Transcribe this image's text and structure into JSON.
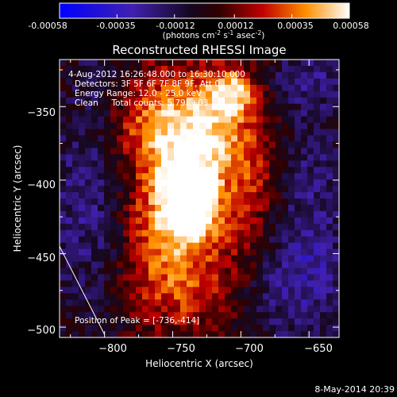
{
  "colorbar": {
    "ticks": [
      "-0.00058",
      "-0.00035",
      "-0.00012",
      "0.00012",
      "0.00035",
      "0.00058"
    ],
    "range": [
      -0.00058,
      0.00058
    ],
    "unit_text": "(photons cm",
    "unit_sup1": "-2",
    "unit_s": " s",
    "unit_sup2": "-1",
    "unit_asec": " asec",
    "unit_sup3": "-2",
    "unit_close": ")"
  },
  "chart_data": {
    "type": "heatmap",
    "title": "Reconstructed RHESSI Image",
    "xlabel": "Heliocentric X (arcsec)",
    "ylabel": "Heliocentric Y (arcsec)",
    "xlim": [
      -833,
      -628
    ],
    "ylim": [
      -507,
      -318
    ],
    "x_ticks": [
      -800,
      -750,
      -700,
      -650
    ],
    "x_tick_labels": [
      "−800",
      "−750",
      "−700",
      "−650"
    ],
    "y_ticks": [
      -350,
      -400,
      -450,
      -500
    ],
    "y_tick_labels": [
      "−350",
      "−400",
      "−450",
      "−500"
    ],
    "annotations": [
      "4-Aug-2012 16:26:48.000 to 16:30:10.000",
      "Detectors: 3F 5F 6F 7F 8F 9F, Att 0",
      "Energy Range: 12.0 - 25.0 keV",
      "Clean     Total counts: 5.79E+03"
    ],
    "peak_label": "Position of Peak = [-736,-414]",
    "peak": {
      "x": -736,
      "y": -414
    },
    "limb_line": [
      [
        -833,
        -445
      ],
      [
        -800,
        -505
      ]
    ],
    "blob_model": [
      {
        "x": -736,
        "y": -414,
        "sx": 12,
        "sy": 16,
        "amp": 0.00058
      },
      {
        "x": -745,
        "y": -395,
        "sx": 22,
        "sy": 40,
        "amp": 0.0004
      },
      {
        "x": -720,
        "y": -360,
        "sx": 20,
        "sy": 25,
        "amp": 0.00034
      },
      {
        "x": -705,
        "y": -340,
        "sx": 12,
        "sy": 10,
        "amp": 0.00038
      },
      {
        "x": -770,
        "y": -360,
        "sx": 20,
        "sy": 25,
        "amp": 0.00026
      },
      {
        "x": -760,
        "y": -440,
        "sx": 25,
        "sy": 30,
        "amp": 0.00024
      },
      {
        "x": -740,
        "y": -480,
        "sx": 30,
        "sy": 20,
        "amp": 0.00018
      },
      {
        "x": -700,
        "y": -440,
        "sx": 20,
        "sy": 25,
        "amp": 0.00016
      },
      {
        "x": -690,
        "y": -390,
        "sx": 18,
        "sy": 25,
        "amp": 0.0002
      },
      {
        "x": -810,
        "y": -420,
        "sx": 25,
        "sy": 50,
        "amp": -0.00022
      },
      {
        "x": -660,
        "y": -470,
        "sx": 30,
        "sy": 30,
        "amp": -0.00024
      },
      {
        "x": -650,
        "y": -400,
        "sx": 20,
        "sy": 40,
        "amp": -0.00018
      },
      {
        "x": -650,
        "y": -330,
        "sx": 20,
        "sy": 15,
        "amp": -0.00018
      },
      {
        "x": -800,
        "y": -330,
        "sx": 15,
        "sy": 15,
        "amp": -0.0001
      }
    ]
  },
  "footer": {
    "timestamp": "8-May-2014 20:39"
  }
}
